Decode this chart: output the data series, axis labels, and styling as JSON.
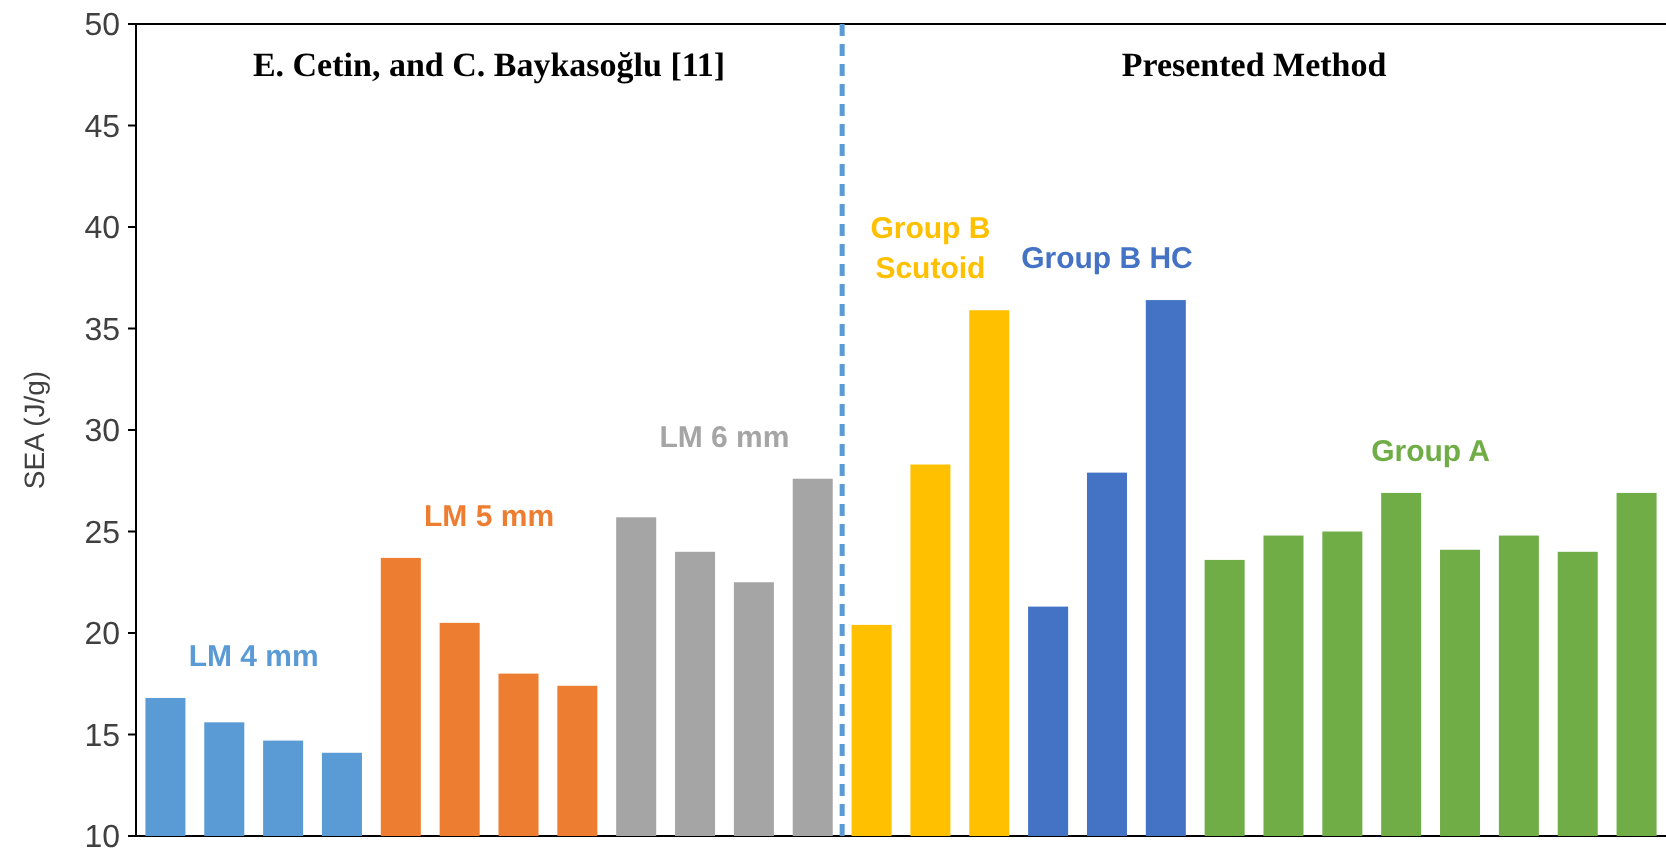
{
  "chart_data": {
    "type": "bar",
    "ylabel": "SEA (J/g)",
    "ylim": [
      10,
      50
    ],
    "yticks": [
      10,
      15,
      20,
      25,
      30,
      35,
      40,
      45,
      50
    ],
    "grid": false,
    "categories": [
      null,
      null,
      null,
      null,
      null,
      null,
      null,
      null,
      null,
      null,
      null,
      null,
      null,
      null,
      null,
      null,
      null,
      null,
      null,
      null,
      null,
      null,
      null,
      null,
      null,
      null
    ],
    "series": [
      {
        "name": "LM 4 mm",
        "color": "#5b9bd5",
        "values": [
          16.8,
          15.6,
          14.7,
          14.1,
          null,
          null,
          null,
          null,
          null,
          null,
          null,
          null,
          null,
          null,
          null,
          null,
          null,
          null,
          null,
          null,
          null,
          null,
          null,
          null,
          null,
          null
        ]
      },
      {
        "name": "LM 5 mm",
        "color": "#ed7d31",
        "values": [
          null,
          null,
          null,
          null,
          23.7,
          20.5,
          18.0,
          17.4,
          null,
          null,
          null,
          null,
          null,
          null,
          null,
          null,
          null,
          null,
          null,
          null,
          null,
          null,
          null,
          null,
          null,
          null
        ]
      },
      {
        "name": "LM 6 mm",
        "color": "#a5a5a5",
        "values": [
          null,
          null,
          null,
          null,
          null,
          null,
          null,
          null,
          25.7,
          24.0,
          22.5,
          27.6,
          null,
          null,
          null,
          null,
          null,
          null,
          null,
          null,
          null,
          null,
          null,
          null,
          null,
          null
        ]
      },
      {
        "name": "Group B Scutoid",
        "color": "#ffc000",
        "values": [
          null,
          null,
          null,
          null,
          null,
          null,
          null,
          null,
          null,
          null,
          null,
          null,
          20.4,
          28.3,
          35.9,
          null,
          null,
          null,
          null,
          null,
          null,
          null,
          null,
          null,
          null,
          null
        ]
      },
      {
        "name": "Group B HC",
        "color": "#4472c4",
        "values": [
          null,
          null,
          null,
          null,
          null,
          null,
          null,
          null,
          null,
          null,
          null,
          null,
          null,
          null,
          null,
          21.3,
          27.9,
          36.4,
          null,
          null,
          null,
          null,
          null,
          null,
          null,
          null
        ]
      },
      {
        "name": "Group A",
        "color": "#70ad47",
        "values": [
          null,
          null,
          null,
          null,
          null,
          null,
          null,
          null,
          null,
          null,
          null,
          null,
          null,
          null,
          null,
          null,
          null,
          null,
          23.6,
          24.8,
          25.0,
          26.9,
          24.1,
          24.8,
          24.0,
          26.9
        ]
      }
    ],
    "annotations": [
      "E. Cetin, and C. Baykasoğlu [11]",
      "Presented Method"
    ]
  }
}
